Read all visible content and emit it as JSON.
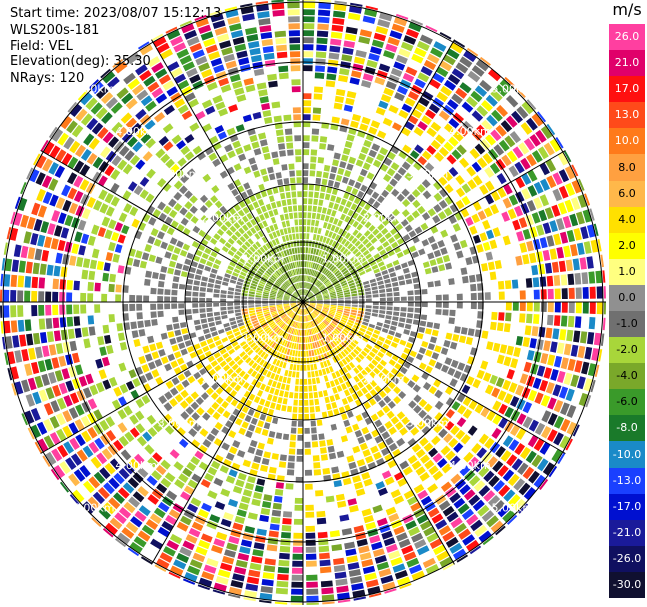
{
  "header": {
    "start_time": "Start time: 2023/08/07 15:12:13",
    "instrument": "WLS200s-181",
    "field": "Field: VEL",
    "elevation": "Elevation(deg): 35.30",
    "nrays": "NRays: 120"
  },
  "colorbar": {
    "unit": "m/s",
    "labels": [
      "26.0",
      "21.0",
      "17.0",
      "13.0",
      "10.0",
      "8.0",
      "6.0",
      "4.0",
      "2.0",
      "1.0",
      "0.0",
      "-1.0",
      "-2.0",
      "-4.0",
      "-6.0",
      "-8.0",
      "-10.0",
      "-13.0",
      "-17.0",
      "-21.0",
      "-26.0",
      "-30.0"
    ],
    "colors": [
      "#ff3fa0",
      "#e0006a",
      "#ff1010",
      "#ff4a1a",
      "#ff7a1a",
      "#ffa040",
      "#ffb84a",
      "#ffe000",
      "#ffff00",
      "#ffff80",
      "#909090",
      "#707070",
      "#a8d63a",
      "#7aa82a",
      "#3a9a2a",
      "#1a7a2a",
      "#1a8ac8",
      "#1a40ff",
      "#0010d0",
      "#1a1a9a",
      "#101060",
      "#101030"
    ]
  },
  "ring_labels": {
    "r1": "1.00km",
    "r2": "2.00km",
    "r3": "3.00km",
    "r4": "4.00km",
    "r5": "5.00km"
  }
}
